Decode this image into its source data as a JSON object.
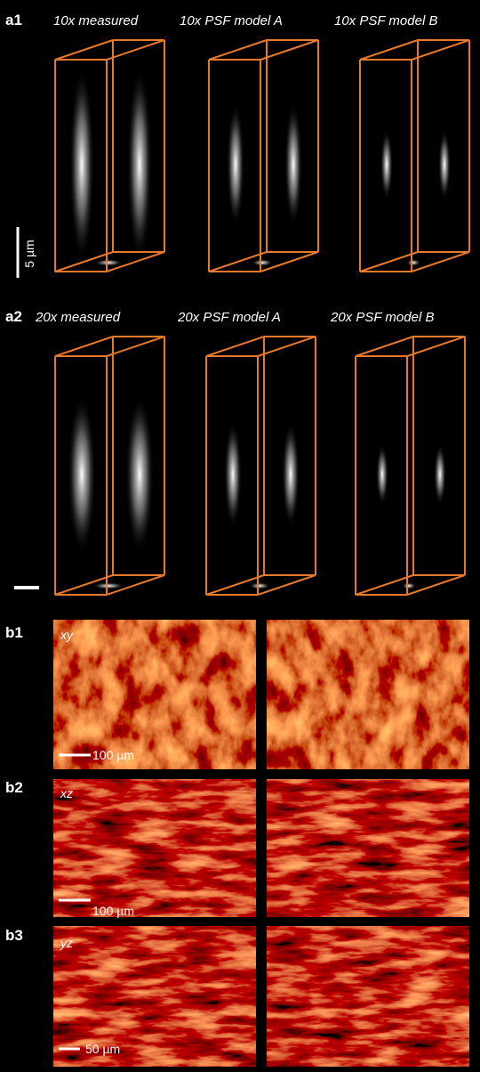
{
  "panel_a1": {
    "label": "a1",
    "titles": [
      "10x measured",
      "10x PSF model A",
      "10x PSF model B"
    ],
    "scale_bar": "5 µm"
  },
  "panel_a2": {
    "label": "a2",
    "titles": [
      "20x measured",
      "20x PSF model A",
      "20x PSF model B"
    ]
  },
  "panel_b1": {
    "label": "b1",
    "plane": "xy",
    "scale_bar": "100 µm"
  },
  "panel_b2": {
    "label": "b2",
    "plane": "xz",
    "scale_bar": "100 µm"
  },
  "panel_b3": {
    "label": "b3",
    "plane": "yz",
    "scale_bar": "50 µm"
  }
}
